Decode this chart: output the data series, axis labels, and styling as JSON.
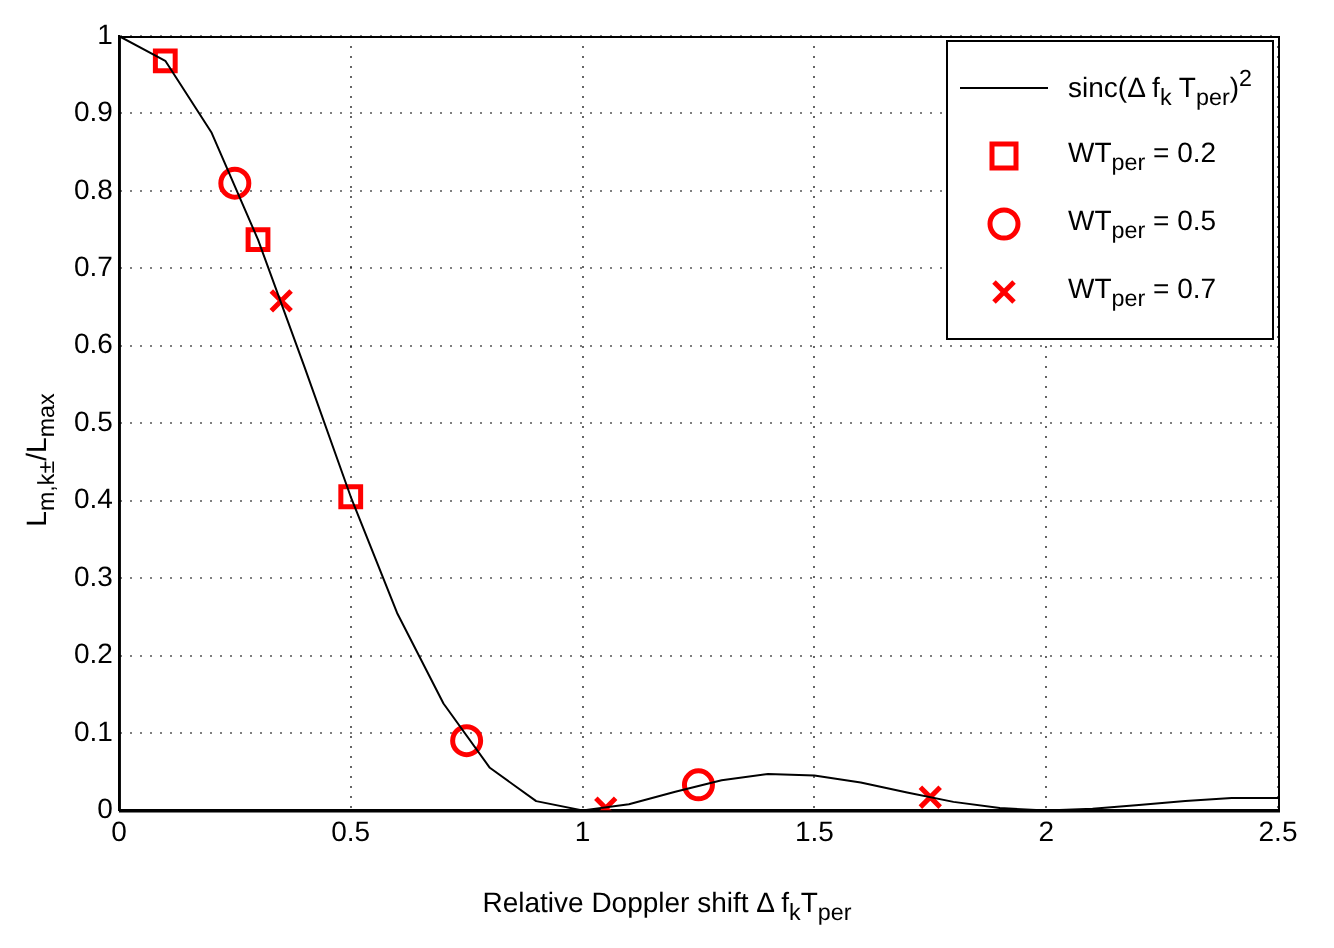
{
  "chart_data": {
    "type": "line",
    "xlabel": "Relative Doppler shift Δ f$_{k}$T$_{per}$",
    "ylabel": "L$_{m,k±}$/L$_{max}$",
    "xlim": [
      0,
      2.5
    ],
    "xticks": [
      0,
      0.5,
      1,
      1.5,
      2,
      2.5
    ],
    "ylim": [
      0,
      1
    ],
    "yticks": [
      0,
      0.1,
      0.2,
      0.3,
      0.4,
      0.5,
      0.6,
      0.7,
      0.8,
      0.9,
      1
    ],
    "grid": true,
    "legend": "top right",
    "series": [
      {
        "name": "sinc(Δ f$_{k}$ T$_{per}$)$^{2}$",
        "type": "line",
        "marker": "none",
        "line_style": "solid",
        "color": "#000000",
        "x": [
          0,
          0.1,
          0.2,
          0.3,
          0.4,
          0.5,
          0.6,
          0.7,
          0.8,
          0.9,
          1.0,
          1.1,
          1.2,
          1.3,
          1.4,
          1.5,
          1.6,
          1.7,
          1.8,
          1.9,
          2.0,
          2.1,
          2.2,
          2.3,
          2.4,
          2.5
        ],
        "values": [
          1,
          0.968,
          0.875,
          0.737,
          0.573,
          0.405,
          0.255,
          0.138,
          0.055,
          0.012,
          0,
          0.008,
          0.024,
          0.039,
          0.047,
          0.045,
          0.036,
          0.023,
          0.011,
          0.003,
          0,
          0.002,
          0.007,
          0.012,
          0.016,
          0.016
        ]
      },
      {
        "name": "WT$_{per}$ = 0.2",
        "type": "scatter",
        "marker": "square",
        "color": "#ff0000",
        "x": [
          0.1,
          0.3,
          0.5
        ],
        "values": [
          0.968,
          0.737,
          0.405
        ]
      },
      {
        "name": "WT$_{per}$ = 0.5",
        "type": "scatter",
        "marker": "circle",
        "color": "#ff0000",
        "x": [
          0.25,
          0.75,
          1.25
        ],
        "values": [
          0.81,
          0.09,
          0.033
        ]
      },
      {
        "name": "WT$_{per}$ = 0.7",
        "type": "scatter",
        "marker": "cross",
        "color": "#ff0000",
        "x": [
          0.35,
          1.05,
          1.75
        ],
        "values": [
          0.658,
          0.003,
          0.017
        ]
      }
    ]
  }
}
